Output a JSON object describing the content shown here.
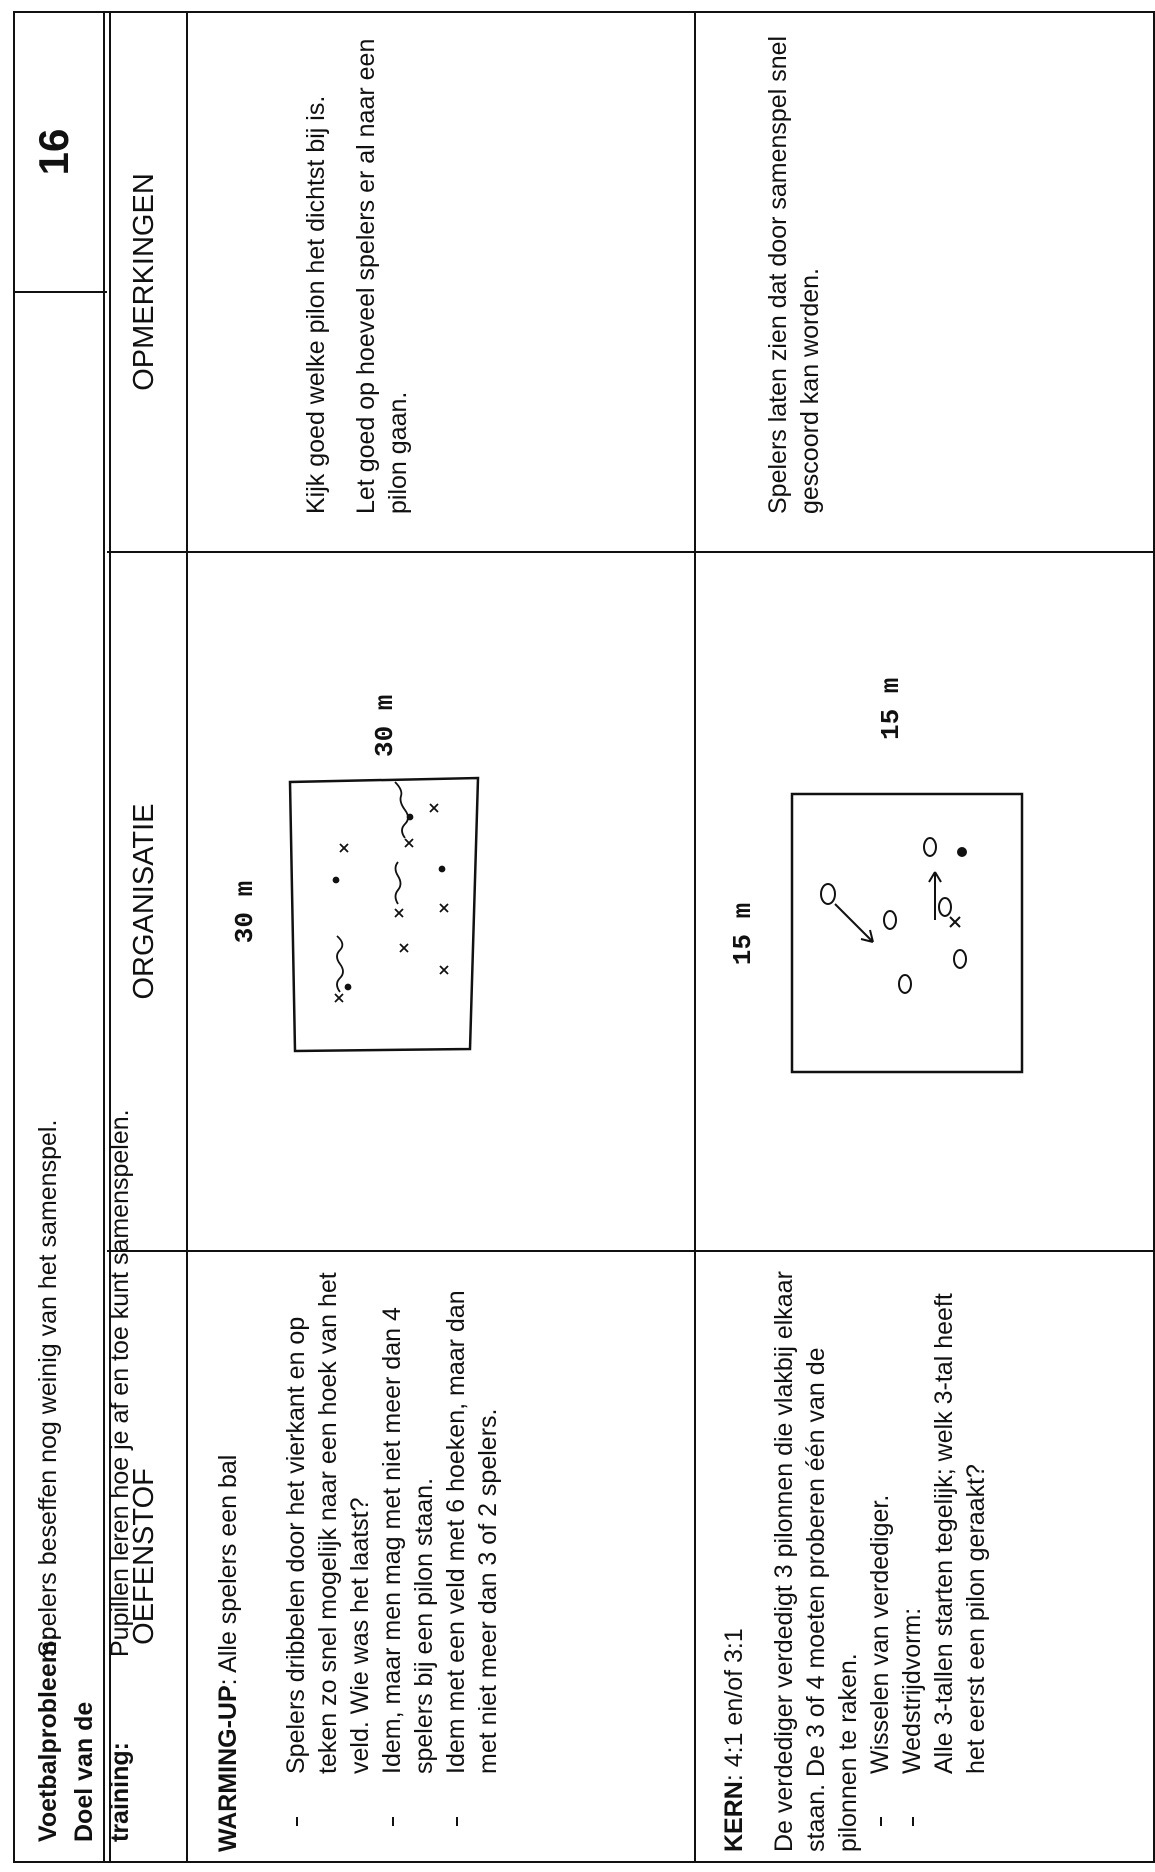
{
  "header": {
    "problem_label": "Voetbalprobleem:",
    "problem": "Spelers beseffen nog weinig van het samenspel.",
    "goal_label": "Doel van de training:",
    "goal": "Pupillen leren hoe je af en toe kunt samenspelen.",
    "number": "16"
  },
  "columns": [
    "OEFENSTOF",
    "ORGANISATIE",
    "OPMERKINGEN"
  ],
  "rows": [
    {
      "oefenstof": {
        "heading_label": "WARMING-UP",
        "heading_text": ": Alle spelers een bal",
        "intro": null,
        "items": [
          [
            "Spelers dribbelen door het vierkant en op teken zo snel mogelijk naar een hoek van het veld. Wie was het laatst?"
          ],
          [
            "Idem, maar men mag met niet meer dan 4 spelers bij een pilon staan."
          ],
          [
            "Idem met een veld met 6 hoeken, maar dan met niet meer dan 3 of 2 spelers."
          ]
        ]
      },
      "organisatie": {
        "width_label": "30 m",
        "height_label": "30 m"
      },
      "opmerkingen": [
        "Kijk goed welke pilon het dichtst bij is.",
        "Let goed op hoeveel spelers er al naar een pilon gaan."
      ]
    },
    {
      "oefenstof": {
        "heading_label": "KERN",
        "heading_text": ": 4:1 en/of 3:1",
        "intro": "De verdediger verdedigt 3 pilonnen die vlakbij elkaar staan. De 3 of 4 moeten proberen één van de pilonnen te raken.",
        "items": [
          [
            "Wisselen van verdediger."
          ],
          [
            "Wedstrijdvorm:",
            "Alle 3-tallen starten tegelijk; welk 3-tal heeft het eerst een pilon geraakt?"
          ]
        ]
      },
      "organisatie": {
        "width_label": "15 m",
        "height_label": "15 m"
      },
      "opmerkingen": [
        "Spelers laten zien dat door samenspel snel gescoord kan worden."
      ]
    }
  ]
}
